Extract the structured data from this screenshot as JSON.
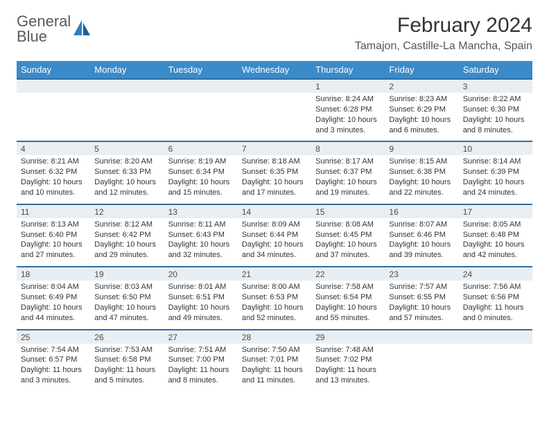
{
  "brand": {
    "line1": "General",
    "line2": "Blue"
  },
  "title": "February 2024",
  "location": "Tamajon, Castille-La Mancha, Spain",
  "colors": {
    "header_bg": "#3a8bc9",
    "header_text": "#ffffff",
    "dayrow_bg": "#e9eef2",
    "dayrow_border": "#2f6da3",
    "brand_gray": "#5a5a5a",
    "brand_blue": "#2f7fc2"
  },
  "weekdays": [
    "Sunday",
    "Monday",
    "Tuesday",
    "Wednesday",
    "Thursday",
    "Friday",
    "Saturday"
  ],
  "weeks": [
    [
      null,
      null,
      null,
      null,
      {
        "d": "1",
        "sr": "Sunrise: 8:24 AM",
        "ss": "Sunset: 6:28 PM",
        "dl1": "Daylight: 10 hours",
        "dl2": "and 3 minutes."
      },
      {
        "d": "2",
        "sr": "Sunrise: 8:23 AM",
        "ss": "Sunset: 6:29 PM",
        "dl1": "Daylight: 10 hours",
        "dl2": "and 6 minutes."
      },
      {
        "d": "3",
        "sr": "Sunrise: 8:22 AM",
        "ss": "Sunset: 6:30 PM",
        "dl1": "Daylight: 10 hours",
        "dl2": "and 8 minutes."
      }
    ],
    [
      {
        "d": "4",
        "sr": "Sunrise: 8:21 AM",
        "ss": "Sunset: 6:32 PM",
        "dl1": "Daylight: 10 hours",
        "dl2": "and 10 minutes."
      },
      {
        "d": "5",
        "sr": "Sunrise: 8:20 AM",
        "ss": "Sunset: 6:33 PM",
        "dl1": "Daylight: 10 hours",
        "dl2": "and 12 minutes."
      },
      {
        "d": "6",
        "sr": "Sunrise: 8:19 AM",
        "ss": "Sunset: 6:34 PM",
        "dl1": "Daylight: 10 hours",
        "dl2": "and 15 minutes."
      },
      {
        "d": "7",
        "sr": "Sunrise: 8:18 AM",
        "ss": "Sunset: 6:35 PM",
        "dl1": "Daylight: 10 hours",
        "dl2": "and 17 minutes."
      },
      {
        "d": "8",
        "sr": "Sunrise: 8:17 AM",
        "ss": "Sunset: 6:37 PM",
        "dl1": "Daylight: 10 hours",
        "dl2": "and 19 minutes."
      },
      {
        "d": "9",
        "sr": "Sunrise: 8:15 AM",
        "ss": "Sunset: 6:38 PM",
        "dl1": "Daylight: 10 hours",
        "dl2": "and 22 minutes."
      },
      {
        "d": "10",
        "sr": "Sunrise: 8:14 AM",
        "ss": "Sunset: 6:39 PM",
        "dl1": "Daylight: 10 hours",
        "dl2": "and 24 minutes."
      }
    ],
    [
      {
        "d": "11",
        "sr": "Sunrise: 8:13 AM",
        "ss": "Sunset: 6:40 PM",
        "dl1": "Daylight: 10 hours",
        "dl2": "and 27 minutes."
      },
      {
        "d": "12",
        "sr": "Sunrise: 8:12 AM",
        "ss": "Sunset: 6:42 PM",
        "dl1": "Daylight: 10 hours",
        "dl2": "and 29 minutes."
      },
      {
        "d": "13",
        "sr": "Sunrise: 8:11 AM",
        "ss": "Sunset: 6:43 PM",
        "dl1": "Daylight: 10 hours",
        "dl2": "and 32 minutes."
      },
      {
        "d": "14",
        "sr": "Sunrise: 8:09 AM",
        "ss": "Sunset: 6:44 PM",
        "dl1": "Daylight: 10 hours",
        "dl2": "and 34 minutes."
      },
      {
        "d": "15",
        "sr": "Sunrise: 8:08 AM",
        "ss": "Sunset: 6:45 PM",
        "dl1": "Daylight: 10 hours",
        "dl2": "and 37 minutes."
      },
      {
        "d": "16",
        "sr": "Sunrise: 8:07 AM",
        "ss": "Sunset: 6:46 PM",
        "dl1": "Daylight: 10 hours",
        "dl2": "and 39 minutes."
      },
      {
        "d": "17",
        "sr": "Sunrise: 8:05 AM",
        "ss": "Sunset: 6:48 PM",
        "dl1": "Daylight: 10 hours",
        "dl2": "and 42 minutes."
      }
    ],
    [
      {
        "d": "18",
        "sr": "Sunrise: 8:04 AM",
        "ss": "Sunset: 6:49 PM",
        "dl1": "Daylight: 10 hours",
        "dl2": "and 44 minutes."
      },
      {
        "d": "19",
        "sr": "Sunrise: 8:03 AM",
        "ss": "Sunset: 6:50 PM",
        "dl1": "Daylight: 10 hours",
        "dl2": "and 47 minutes."
      },
      {
        "d": "20",
        "sr": "Sunrise: 8:01 AM",
        "ss": "Sunset: 6:51 PM",
        "dl1": "Daylight: 10 hours",
        "dl2": "and 49 minutes."
      },
      {
        "d": "21",
        "sr": "Sunrise: 8:00 AM",
        "ss": "Sunset: 6:53 PM",
        "dl1": "Daylight: 10 hours",
        "dl2": "and 52 minutes."
      },
      {
        "d": "22",
        "sr": "Sunrise: 7:58 AM",
        "ss": "Sunset: 6:54 PM",
        "dl1": "Daylight: 10 hours",
        "dl2": "and 55 minutes."
      },
      {
        "d": "23",
        "sr": "Sunrise: 7:57 AM",
        "ss": "Sunset: 6:55 PM",
        "dl1": "Daylight: 10 hours",
        "dl2": "and 57 minutes."
      },
      {
        "d": "24",
        "sr": "Sunrise: 7:56 AM",
        "ss": "Sunset: 6:56 PM",
        "dl1": "Daylight: 11 hours",
        "dl2": "and 0 minutes."
      }
    ],
    [
      {
        "d": "25",
        "sr": "Sunrise: 7:54 AM",
        "ss": "Sunset: 6:57 PM",
        "dl1": "Daylight: 11 hours",
        "dl2": "and 3 minutes."
      },
      {
        "d": "26",
        "sr": "Sunrise: 7:53 AM",
        "ss": "Sunset: 6:58 PM",
        "dl1": "Daylight: 11 hours",
        "dl2": "and 5 minutes."
      },
      {
        "d": "27",
        "sr": "Sunrise: 7:51 AM",
        "ss": "Sunset: 7:00 PM",
        "dl1": "Daylight: 11 hours",
        "dl2": "and 8 minutes."
      },
      {
        "d": "28",
        "sr": "Sunrise: 7:50 AM",
        "ss": "Sunset: 7:01 PM",
        "dl1": "Daylight: 11 hours",
        "dl2": "and 11 minutes."
      },
      {
        "d": "29",
        "sr": "Sunrise: 7:48 AM",
        "ss": "Sunset: 7:02 PM",
        "dl1": "Daylight: 11 hours",
        "dl2": "and 13 minutes."
      },
      null,
      null
    ]
  ]
}
